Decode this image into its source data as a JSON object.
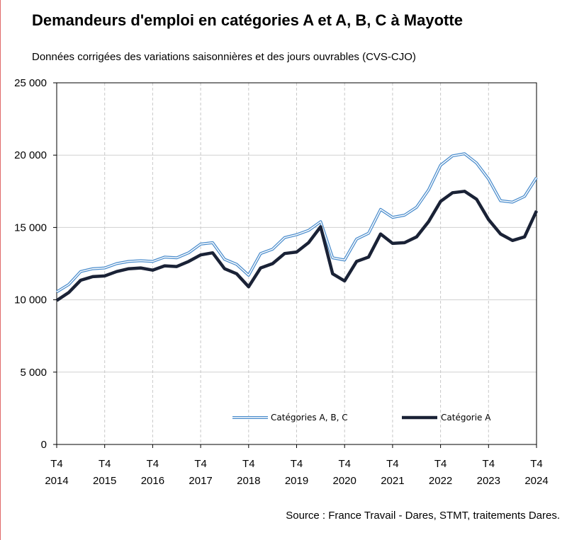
{
  "title": "Demandeurs d'emploi en catégories A et A, B, C à Mayotte",
  "subtitle": "Données corrigées des variations saisonnières et des jours ouvrables (CVS-CJO)",
  "source": "Source : France Travail - Dares, STMT, traitements Dares.",
  "colors": {
    "abc": "#4a8ccc",
    "a": "#1a2236",
    "grid": "#d0d0d0"
  },
  "chart_data": {
    "type": "line",
    "title": "Demandeurs d'emploi en catégories A et A, B, C à Mayotte",
    "subtitle": "Données corrigées des variations saisonnières et des jours ouvrables (CVS-CJO)",
    "ylim": [
      0,
      25000
    ],
    "yticks": [
      0,
      5000,
      10000,
      15000,
      20000,
      25000
    ],
    "ytick_labels": [
      "0",
      "5 000",
      "10 000",
      "15 000",
      "20 000",
      "25 000"
    ],
    "xlabels_top": [
      "T4",
      "T4",
      "T4",
      "T4",
      "T4",
      "T4",
      "T4",
      "T4",
      "T4",
      "T4",
      "T4"
    ],
    "xlabels_bottom": [
      "2014",
      "2015",
      "2016",
      "2017",
      "2018",
      "2019",
      "2020",
      "2021",
      "2022",
      "2023",
      "2024"
    ],
    "x": [
      "2014-T4",
      "2015-T1",
      "2015-T2",
      "2015-T3",
      "2015-T4",
      "2016-T1",
      "2016-T2",
      "2016-T3",
      "2016-T4",
      "2017-T1",
      "2017-T2",
      "2017-T3",
      "2017-T4",
      "2018-T1",
      "2018-T2",
      "2018-T3",
      "2018-T4",
      "2019-T1",
      "2019-T2",
      "2019-T3",
      "2019-T4",
      "2020-T1",
      "2020-T2",
      "2020-T3",
      "2020-T4",
      "2021-T1",
      "2021-T2",
      "2021-T3",
      "2021-T4",
      "2022-T1",
      "2022-T2",
      "2022-T3",
      "2022-T4",
      "2023-T1",
      "2023-T2",
      "2023-T3",
      "2023-T4",
      "2024-T1",
      "2024-T2",
      "2024-T3",
      "2024-T4"
    ],
    "grid": true,
    "legend_position": "bottom-center",
    "series": [
      {
        "name": "Catégories A, B, C",
        "style": "double",
        "values": [
          10550,
          11050,
          11950,
          12150,
          12200,
          12500,
          12650,
          12700,
          12650,
          12950,
          12900,
          13250,
          13850,
          13950,
          12800,
          12450,
          11700,
          13200,
          13500,
          14300,
          14500,
          14800,
          15400,
          12900,
          12750,
          14200,
          14600,
          16250,
          15700,
          15850,
          16400,
          17600,
          19300,
          19950,
          20100,
          19450,
          18350,
          16850,
          16750,
          17150,
          18450
        ]
      },
      {
        "name": "Catégorie A",
        "style": "solid",
        "values": [
          9950,
          10500,
          11350,
          11600,
          11650,
          11950,
          12150,
          12200,
          12050,
          12350,
          12300,
          12650,
          13100,
          13250,
          12150,
          11800,
          10900,
          12200,
          12500,
          13200,
          13300,
          13950,
          15050,
          11800,
          11300,
          12650,
          12950,
          14550,
          13900,
          13950,
          14350,
          15400,
          16800,
          17400,
          17500,
          16950,
          15550,
          14550,
          14100,
          14350,
          16150
        ]
      }
    ]
  }
}
